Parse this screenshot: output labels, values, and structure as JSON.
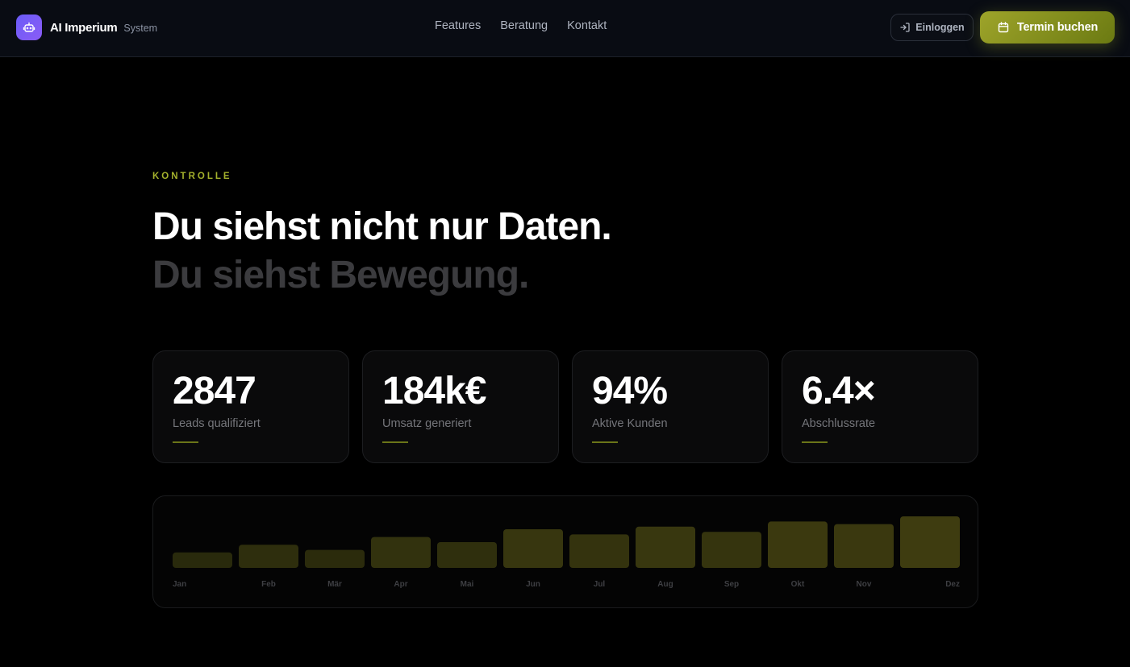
{
  "header": {
    "brand_name": "AI Imperium",
    "brand_sub": "System",
    "brand_icon": "robot-icon",
    "nav": [
      "Features",
      "Beratung",
      "Kontakt"
    ],
    "login_label": "Einloggen",
    "login_icon": "login-arrow-icon",
    "book_label": "Termin buchen",
    "book_icon": "calendar-icon"
  },
  "hero": {
    "eyebrow": "KONTROLLE",
    "headline_line1": "Du siehst nicht nur Daten.",
    "headline_line2": "Du siehst Bewegung."
  },
  "stats": [
    {
      "value": "2847",
      "label": "Leads qualifiziert"
    },
    {
      "value": "184k€",
      "label": "Umsatz generiert"
    },
    {
      "value": "94%",
      "label": "Aktive Kunden"
    },
    {
      "value": "6.4×",
      "label": "Abschlussrate"
    }
  ],
  "colors": {
    "accent": "#a3b02c",
    "button_gradient_start": "#9ea42a",
    "button_gradient_end": "#6b7a12",
    "brand_logo": "#7c5cf6"
  },
  "chart_data": {
    "type": "bar",
    "categories": [
      "Jan",
      "Feb",
      "Mär",
      "Apr",
      "Mai",
      "Jun",
      "Jul",
      "Aug",
      "Sep",
      "Okt",
      "Nov",
      "Dez"
    ],
    "values": [
      30,
      45,
      35,
      60,
      50,
      75,
      65,
      80,
      70,
      90,
      85,
      100
    ],
    "ylim": [
      0,
      100
    ],
    "title": "",
    "xlabel": "",
    "ylabel": "",
    "grid": false,
    "legend": "none"
  }
}
